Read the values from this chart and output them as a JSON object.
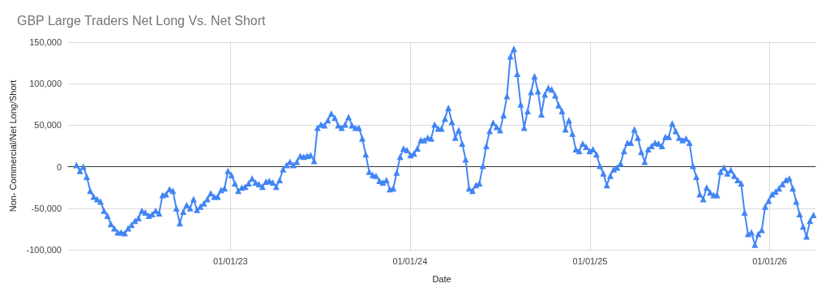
{
  "chart_data": {
    "type": "line",
    "title": "GBP Large Traders Net Long Vs. Net Short",
    "xlabel": "Date",
    "ylabel": "Non- Commercial/Net Long/Short",
    "x": [
      "2022-02-22",
      "2022-03-01",
      "2022-03-08",
      "2022-03-15",
      "2022-03-22",
      "2022-03-29",
      "2022-04-05",
      "2022-04-12",
      "2022-04-19",
      "2022-04-26",
      "2022-05-03",
      "2022-05-10",
      "2022-05-17",
      "2022-05-24",
      "2022-05-31",
      "2022-06-07",
      "2022-06-14",
      "2022-06-21",
      "2022-06-28",
      "2022-07-05",
      "2022-07-12",
      "2022-07-19",
      "2022-07-26",
      "2022-08-02",
      "2022-08-09",
      "2022-08-16",
      "2022-08-23",
      "2022-08-30",
      "2022-09-06",
      "2022-09-13",
      "2022-09-20",
      "2022-09-27",
      "2022-10-04",
      "2022-10-11",
      "2022-10-18",
      "2022-10-25",
      "2022-11-01",
      "2022-11-08",
      "2022-11-15",
      "2022-11-22",
      "2022-11-29",
      "2022-12-06",
      "2022-12-13",
      "2022-12-20",
      "2022-12-27",
      "2023-01-03",
      "2023-01-10",
      "2023-01-17",
      "2023-01-24",
      "2023-01-31",
      "2023-02-07",
      "2023-02-14",
      "2023-02-21",
      "2023-02-28",
      "2023-03-07",
      "2023-03-14",
      "2023-03-21",
      "2023-03-28",
      "2023-04-04",
      "2023-04-11",
      "2023-04-18",
      "2023-04-25",
      "2023-05-02",
      "2023-05-09",
      "2023-05-16",
      "2023-05-23",
      "2023-05-30",
      "2023-06-06",
      "2023-06-13",
      "2023-06-20",
      "2023-06-27",
      "2023-07-04",
      "2023-07-11",
      "2023-07-18",
      "2023-07-25",
      "2023-08-01",
      "2023-08-08",
      "2023-08-15",
      "2023-08-22",
      "2023-08-29",
      "2023-09-05",
      "2023-09-12",
      "2023-09-19",
      "2023-09-26",
      "2023-10-03",
      "2023-10-10",
      "2023-10-17",
      "2023-10-24",
      "2023-10-31",
      "2023-11-07",
      "2023-11-14",
      "2023-11-21",
      "2023-11-28",
      "2023-12-05",
      "2023-12-12",
      "2023-12-19",
      "2023-12-26",
      "2024-01-02",
      "2024-01-09",
      "2024-01-16",
      "2024-01-23",
      "2024-01-30",
      "2024-02-06",
      "2024-02-13",
      "2024-02-20",
      "2024-02-27",
      "2024-03-05",
      "2024-03-12",
      "2024-03-19",
      "2024-03-26",
      "2024-04-02",
      "2024-04-09",
      "2024-04-16",
      "2024-04-23",
      "2024-04-30",
      "2024-05-07",
      "2024-05-14",
      "2024-05-21",
      "2024-05-28",
      "2024-06-04",
      "2024-06-11",
      "2024-06-18",
      "2024-06-25",
      "2024-07-02",
      "2024-07-09",
      "2024-07-16",
      "2024-07-23",
      "2024-07-30",
      "2024-08-06",
      "2024-08-13",
      "2024-08-20",
      "2024-08-27",
      "2024-09-03",
      "2024-09-10",
      "2024-09-17",
      "2024-09-24",
      "2024-10-01",
      "2024-10-08",
      "2024-10-15",
      "2024-10-22",
      "2024-10-29",
      "2024-11-05",
      "2024-11-12",
      "2024-11-19",
      "2024-11-26",
      "2024-12-03",
      "2024-12-10",
      "2024-12-17",
      "2024-12-24",
      "2024-12-31",
      "2025-01-07",
      "2025-01-14",
      "2025-01-21",
      "2025-01-28",
      "2025-02-04",
      "2025-02-11",
      "2025-02-18",
      "2025-02-25",
      "2025-03-04",
      "2025-03-11",
      "2025-03-18",
      "2025-03-25",
      "2025-04-01",
      "2025-04-08",
      "2025-04-15",
      "2025-04-22",
      "2025-04-29",
      "2025-05-06",
      "2025-05-13",
      "2025-05-20",
      "2025-05-27",
      "2025-06-03",
      "2025-06-10",
      "2025-06-17",
      "2025-06-24",
      "2025-07-01",
      "2025-07-08",
      "2025-07-15",
      "2025-07-22",
      "2025-07-29",
      "2025-08-05",
      "2025-08-12",
      "2025-08-19",
      "2025-08-26",
      "2025-09-02",
      "2025-09-09",
      "2025-09-16",
      "2025-09-23",
      "2025-09-30",
      "2025-10-07",
      "2025-10-14",
      "2025-10-21",
      "2025-10-28",
      "2025-11-04",
      "2025-11-11",
      "2025-11-18",
      "2025-11-25",
      "2025-12-02",
      "2025-12-09",
      "2025-12-16",
      "2025-12-23",
      "2025-12-30",
      "2026-01-06",
      "2026-01-13",
      "2026-01-20",
      "2026-01-27",
      "2026-02-03",
      "2026-02-10",
      "2026-02-17",
      "2026-02-24",
      "2026-03-03",
      "2026-03-10",
      "2026-03-17",
      "2026-03-24",
      "2026-03-31"
    ],
    "series": [
      {
        "color": "#4285f4",
        "values": [
          2000,
          -5000,
          0,
          -12000,
          -29000,
          -36000,
          -39000,
          -42000,
          -53000,
          -59000,
          -69000,
          -74000,
          -79000,
          -79000,
          -80000,
          -74000,
          -70000,
          -65000,
          -62000,
          -53000,
          -55000,
          -59000,
          -57000,
          -53000,
          -56000,
          -34000,
          -33000,
          -27000,
          -29000,
          -50000,
          -68000,
          -54000,
          -46000,
          -50000,
          -39000,
          -52000,
          -48000,
          -44000,
          -39000,
          -32000,
          -36000,
          -36000,
          -28000,
          -26000,
          -5000,
          -10000,
          -20000,
          -29000,
          -25000,
          -24000,
          -20000,
          -14000,
          -19000,
          -21000,
          -24000,
          -18000,
          -17000,
          -19000,
          -24000,
          -16000,
          -3000,
          2000,
          6000,
          2000,
          6000,
          13000,
          12000,
          13000,
          14000,
          7000,
          47000,
          51000,
          50000,
          56000,
          64000,
          59000,
          50000,
          47000,
          51000,
          60000,
          50000,
          47000,
          47000,
          34000,
          15000,
          -6000,
          -10000,
          -11000,
          -17000,
          -19000,
          -16000,
          -27000,
          -26000,
          -7000,
          12000,
          22000,
          20000,
          14000,
          16000,
          22000,
          32000,
          32000,
          35000,
          34000,
          51000,
          46000,
          46000,
          58000,
          71000,
          54000,
          35000,
          44000,
          28000,
          9000,
          -26000,
          -29000,
          -22000,
          -20000,
          1000,
          25000,
          43000,
          53000,
          48000,
          44000,
          62000,
          85000,
          133000,
          142000,
          112000,
          75000,
          47000,
          67000,
          90000,
          109000,
          91000,
          63000,
          87000,
          95000,
          93000,
          86000,
          74000,
          67000,
          45000,
          56000,
          40000,
          21000,
          19000,
          28000,
          24000,
          19000,
          21000,
          15000,
          1000,
          -8000,
          -22000,
          -11000,
          -3000,
          -1000,
          4000,
          19000,
          29000,
          29000,
          45000,
          35000,
          18000,
          6000,
          21000,
          25000,
          29000,
          28000,
          25000,
          36000,
          36000,
          52000,
          43000,
          35000,
          32000,
          34000,
          29000,
          1000,
          -12000,
          -33000,
          -39000,
          -25000,
          -31000,
          -34000,
          -34000,
          -6000,
          -1000,
          -8000,
          -4000,
          -11000,
          -16000,
          -20000,
          -55000,
          -81000,
          -79000,
          -94000,
          -81000,
          -76000,
          -48000,
          -41000,
          -33000,
          -30000,
          -26000,
          -21000,
          -16000,
          -14000,
          -26000,
          -42000,
          -57000,
          -72000,
          -84000,
          -65000,
          -58000
        ]
      }
    ],
    "xlim": [
      "2022-02-05",
      "2026-04-04"
    ],
    "xticks": [
      {
        "value": "2023-01-01",
        "label": "01/01/23"
      },
      {
        "value": "2024-01-01",
        "label": "01/01/24"
      },
      {
        "value": "2025-01-01",
        "label": "01/01/25"
      },
      {
        "value": "2026-01-01",
        "label": "01/01/26"
      }
    ],
    "ylim": [
      -100000,
      150000
    ],
    "yticks": [
      {
        "value": -100000,
        "label": "-100,000"
      },
      {
        "value": -50000,
        "label": "-50,000"
      },
      {
        "value": 0,
        "label": "0"
      },
      {
        "value": 50000,
        "label": "50,000"
      },
      {
        "value": 100000,
        "label": "100,000"
      },
      {
        "value": 150000,
        "label": "150,000"
      }
    ],
    "grid": true,
    "marker": "triangle",
    "line_style": "solid"
  }
}
